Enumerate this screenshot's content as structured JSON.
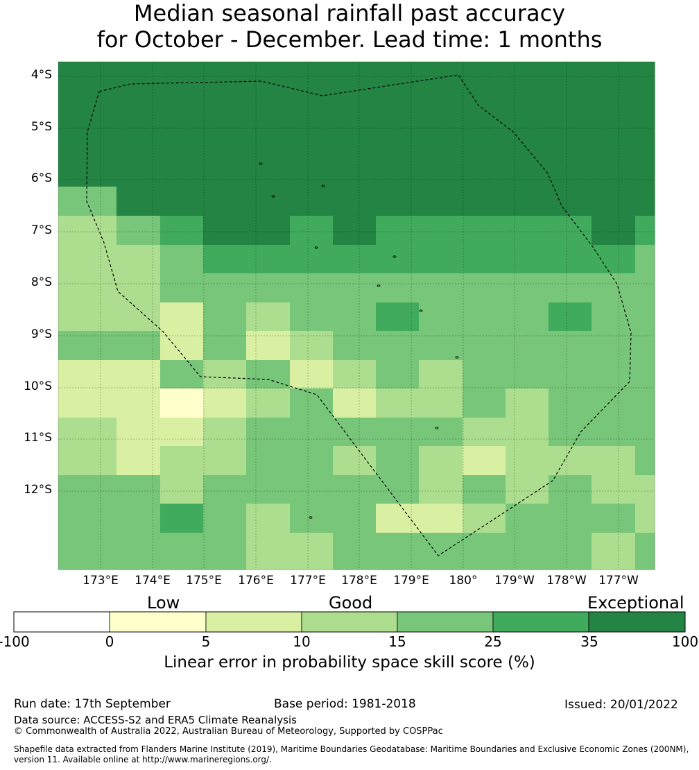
{
  "title": {
    "line1": "Median seasonal rainfall past accuracy",
    "line2": "for October - December. Lead time: 1 months"
  },
  "map": {
    "lat_labels": [
      "4°S",
      "5°S",
      "6°S",
      "7°S",
      "8°S",
      "9°S",
      "10°S",
      "11°S",
      "12°S"
    ],
    "lon_labels": [
      "173°E",
      "174°E",
      "175°E",
      "176°E",
      "177°E",
      "178°E",
      "179°E",
      "180°",
      "179°W",
      "178°W",
      "177°W"
    ],
    "grid_values": [
      [
        40,
        40,
        40,
        40,
        40,
        40,
        40,
        40,
        40,
        40,
        40,
        40,
        40,
        40
      ],
      [
        40,
        40,
        40,
        40,
        40,
        40,
        40,
        40,
        40,
        40,
        40,
        40,
        40,
        40
      ],
      [
        40,
        40,
        40,
        40,
        40,
        40,
        40,
        40,
        40,
        40,
        40,
        40,
        40,
        40
      ],
      [
        40,
        40,
        40,
        40,
        40,
        40,
        40,
        40,
        40,
        40,
        40,
        40,
        40,
        40
      ],
      [
        40,
        40,
        40,
        40,
        40,
        40,
        40,
        40,
        40,
        40,
        40,
        40,
        40,
        40
      ],
      [
        20,
        40,
        40,
        40,
        40,
        40,
        40,
        40,
        40,
        40,
        40,
        40,
        40,
        40
      ],
      [
        12,
        20,
        30,
        40,
        40,
        30,
        40,
        30,
        30,
        30,
        30,
        30,
        40,
        30
      ],
      [
        12,
        12,
        20,
        30,
        30,
        30,
        30,
        30,
        30,
        30,
        30,
        30,
        30,
        20
      ],
      [
        12,
        12,
        20,
        20,
        20,
        20,
        20,
        20,
        20,
        20,
        20,
        20,
        20,
        20
      ],
      [
        12,
        12,
        7,
        20,
        12,
        20,
        20,
        30,
        20,
        20,
        20,
        30,
        20,
        20
      ],
      [
        20,
        20,
        7,
        20,
        7,
        12,
        20,
        20,
        20,
        20,
        20,
        20,
        20,
        20
      ],
      [
        7,
        7,
        20,
        12,
        20,
        7,
        12,
        20,
        12,
        20,
        20,
        20,
        20,
        20
      ],
      [
        7,
        7,
        3,
        7,
        12,
        20,
        7,
        12,
        12,
        20,
        12,
        20,
        20,
        20
      ],
      [
        12,
        7,
        7,
        12,
        20,
        20,
        20,
        20,
        20,
        12,
        12,
        20,
        20,
        20
      ],
      [
        12,
        7,
        12,
        12,
        20,
        20,
        12,
        20,
        12,
        7,
        12,
        12,
        12,
        20
      ],
      [
        20,
        20,
        12,
        20,
        20,
        20,
        20,
        20,
        12,
        20,
        12,
        20,
        12,
        12
      ],
      [
        20,
        20,
        30,
        20,
        12,
        20,
        20,
        7,
        7,
        12,
        20,
        20,
        20,
        12
      ],
      [
        20,
        20,
        20,
        20,
        12,
        12,
        20,
        20,
        20,
        20,
        20,
        20,
        12,
        20
      ]
    ]
  },
  "colorbar": {
    "categories": [
      "Low",
      "Good",
      "Exceptional"
    ],
    "ticks": [
      "-100",
      "0",
      "5",
      "10",
      "15",
      "25",
      "35",
      "100"
    ],
    "colors": [
      "#ffffff",
      "#ffffcc",
      "#d9f0a3",
      "#addd8e",
      "#78c679",
      "#41ab5d",
      "#238443"
    ],
    "label": "Linear error in probability space skill score (%)"
  },
  "footer": {
    "run_date": "Run date: 17th September",
    "base_period": "Base period: 1981-2018",
    "issued": "Issued: 20/01/2022",
    "data_source": "Data source: ACCESS-S2 and ERA5 Climate Reanalysis",
    "copyright": "© Commonwealth of Australia 2022, Australian Bureau of Meteorology, Supported by COSPPac",
    "shapefile_line1": "Shapefile data extracted from Flanders Marine Institute (2019), Maritime Boundaries Geodatabase: Maritime Boundaries and Exclusive Economic Zones (200NM),",
    "shapefile_line2": "version 11. Available online at http://www.marineregions.org/."
  }
}
